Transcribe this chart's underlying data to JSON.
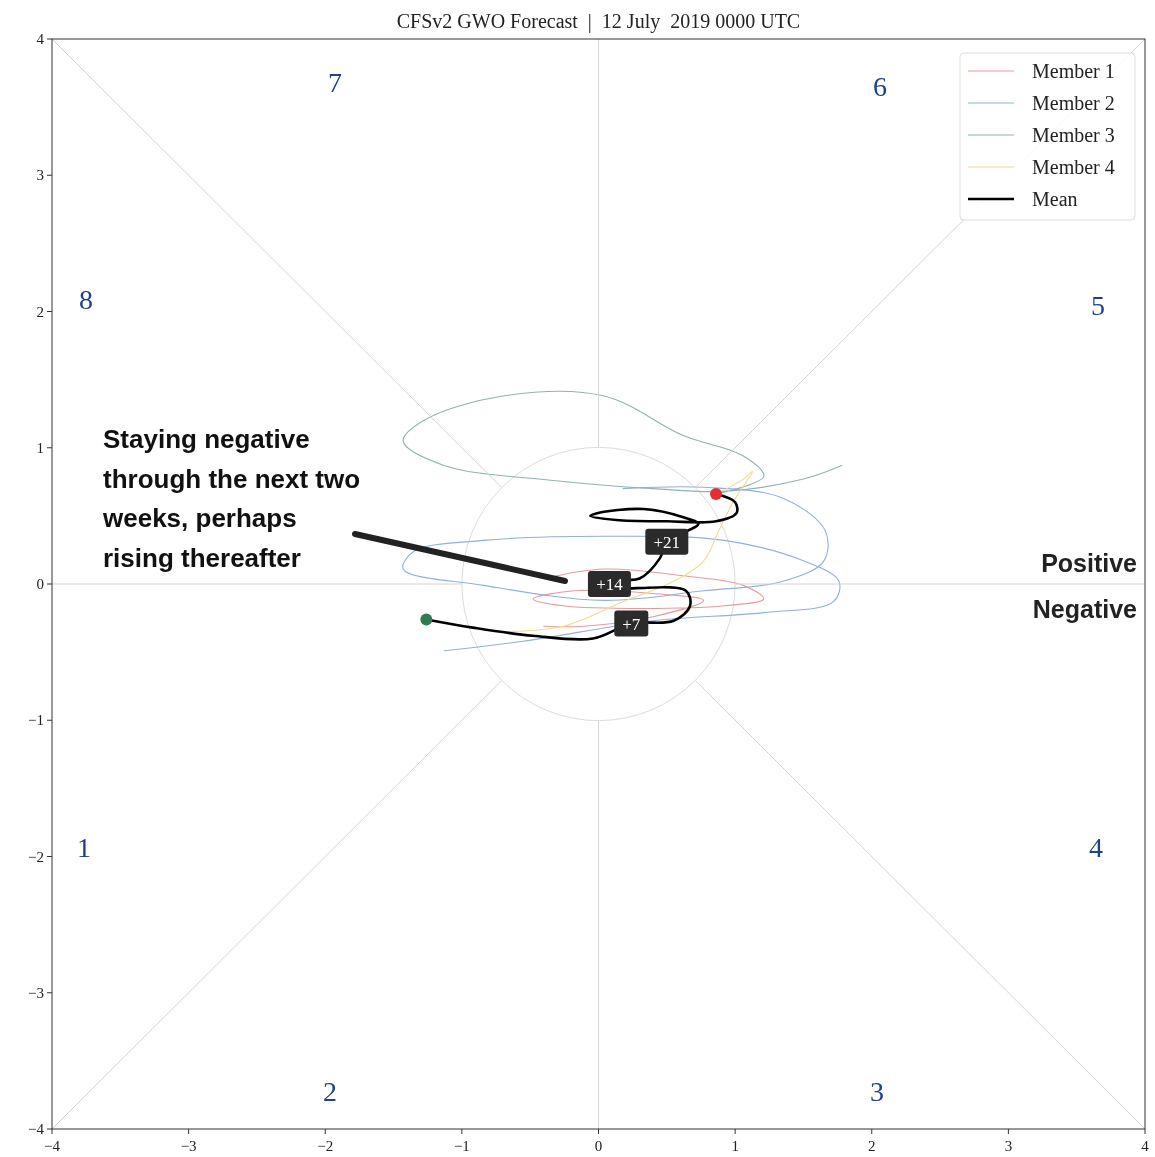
{
  "chart_data": {
    "type": "line",
    "title": "CFSv2 GWO Forecast  |  12 July  2019 0000 UTC",
    "xlim": [
      -4,
      4
    ],
    "ylim": [
      -4,
      4
    ],
    "xticks": [
      -4,
      -3,
      -2,
      -1,
      0,
      1,
      2,
      3,
      4
    ],
    "yticks": [
      -4,
      -3,
      -2,
      -1,
      0,
      1,
      2,
      3,
      4
    ],
    "grid": false,
    "legend": "top right",
    "marker": "none",
    "line_style": "solid",
    "series": [
      {
        "name": "Member 1",
        "color": "#e89a9a",
        "x": [
          -0.4,
          0.04,
          0.62,
          1.06,
          1.21,
          0.92,
          0.33,
          -0.26,
          -0.48,
          -0.18,
          0.4,
          0.77,
          0.4,
          -0.11,
          -0.4
        ],
        "values": [
          0.04,
          0.11,
          0.06,
          -0.01,
          -0.11,
          -0.16,
          -0.18,
          -0.16,
          -0.11,
          -0.05,
          -0.07,
          -0.12,
          -0.24,
          -0.31,
          -0.31
        ]
      },
      {
        "name": "Member 2",
        "color": "#8fb0e0",
        "x": [
          0.18,
          0.77,
          1.35,
          1.66,
          1.65,
          1.35,
          0.77,
          0.04,
          -0.84,
          -1.43,
          -1.35,
          -0.84,
          0.04,
          0.92,
          1.5,
          1.76,
          1.72,
          1.21,
          0.4,
          -0.55,
          -1.13
        ],
        "values": [
          0.7,
          0.71,
          0.63,
          0.39,
          0.17,
          0.02,
          -0.05,
          -0.12,
          -0.01,
          0.11,
          0.24,
          0.32,
          0.35,
          0.32,
          0.17,
          0.02,
          -0.13,
          -0.21,
          -0.27,
          -0.42,
          -0.49
        ]
      },
      {
        "name": "Member 3",
        "color": "#8fb3b0",
        "x": [
          0.86,
          1.21,
          1.06,
          0.62,
          0.04,
          -0.7,
          -1.28,
          -1.43,
          -1.13,
          -0.33,
          0.4,
          0.92,
          1.5,
          1.78
        ],
        "values": [
          0.66,
          0.79,
          0.94,
          1.09,
          1.38,
          1.38,
          1.2,
          1.05,
          0.87,
          0.76,
          0.7,
          0.68,
          0.77,
          0.87
        ]
      },
      {
        "name": "Member 4",
        "color": "#f0dc8c",
        "x": [
          0.86,
          1.06,
          1.13,
          0.99,
          0.88,
          0.77,
          0.55,
          0.18,
          -0.26,
          -0.7
        ],
        "values": [
          0.66,
          0.77,
          0.83,
          0.61,
          0.39,
          0.17,
          0.02,
          -0.13,
          -0.31,
          -0.35
        ]
      },
      {
        "name": "Mean",
        "color": "#000000",
        "x": [
          -1.26,
          -0.92,
          -0.48,
          -0.04,
          0.24,
          0.55,
          0.67,
          0.64,
          0.28,
          0.12,
          0.08,
          0.15,
          0.3,
          0.45,
          0.5,
          0.73,
          0.62,
          0.33,
          -0.01,
          -0.06,
          0.13,
          0.5,
          0.86,
          1.01,
          1.0,
          0.86
        ],
        "values": [
          -0.26,
          -0.32,
          -0.38,
          -0.4,
          -0.29,
          -0.27,
          -0.16,
          -0.05,
          -0.03,
          -0.04,
          0.0,
          0.03,
          0.04,
          0.19,
          0.31,
          0.44,
          0.49,
          0.55,
          0.52,
          0.5,
          0.47,
          0.46,
          0.46,
          0.52,
          0.6,
          0.66
        ]
      },
      {
        "color": "#d4d4d4",
        "x": [
          0,
          0
        ],
        "values": [
          4,
          1
        ]
      },
      {
        "color": "#d4d4d4",
        "x": [
          0,
          0
        ],
        "values": [
          -1,
          -4
        ]
      },
      {
        "color": "#d4d4d4",
        "x": [
          -4,
          -1
        ],
        "values": [
          0,
          0
        ]
      },
      {
        "color": "#d4d4d4",
        "x": [
          1,
          4
        ],
        "values": [
          0,
          0
        ]
      },
      {
        "color": "#d4d4d4",
        "x": [
          -4,
          -0.71
        ],
        "values": [
          4,
          0.71
        ]
      },
      {
        "color": "#d4d4d4",
        "x": [
          0.71,
          4
        ],
        "values": [
          0.71,
          4
        ]
      },
      {
        "color": "#d4d4d4",
        "x": [
          -4,
          -0.71
        ],
        "values": [
          -4,
          -0.71
        ]
      },
      {
        "color": "#d4d4d4",
        "x": [
          0.71,
          4
        ],
        "values": [
          -0.71,
          -4
        ]
      },
      {
        "type": "scatter",
        "marker": "circle",
        "color": "#2e7d4f",
        "x": [
          -1.26
        ],
        "values": [
          -0.26
        ]
      },
      {
        "type": "scatter",
        "marker": "circle",
        "color": "#e03030",
        "x": [
          0.86
        ],
        "values": [
          0.66
        ]
      }
    ],
    "annotations": [
      "1",
      "2",
      "3",
      "4",
      "5",
      "6",
      "7",
      "8",
      "Positive",
      "Negative",
      "Staying negative\nthrough the next two\nweeks, perhaps\nrising thereafter",
      {
        "text": "+7",
        "x": 0.24,
        "y": -0.29
      },
      {
        "text": "+14",
        "x": 0.08,
        "y": 0.0
      },
      {
        "text": "+21",
        "x": 0.5,
        "y": 0.31
      }
    ]
  }
}
